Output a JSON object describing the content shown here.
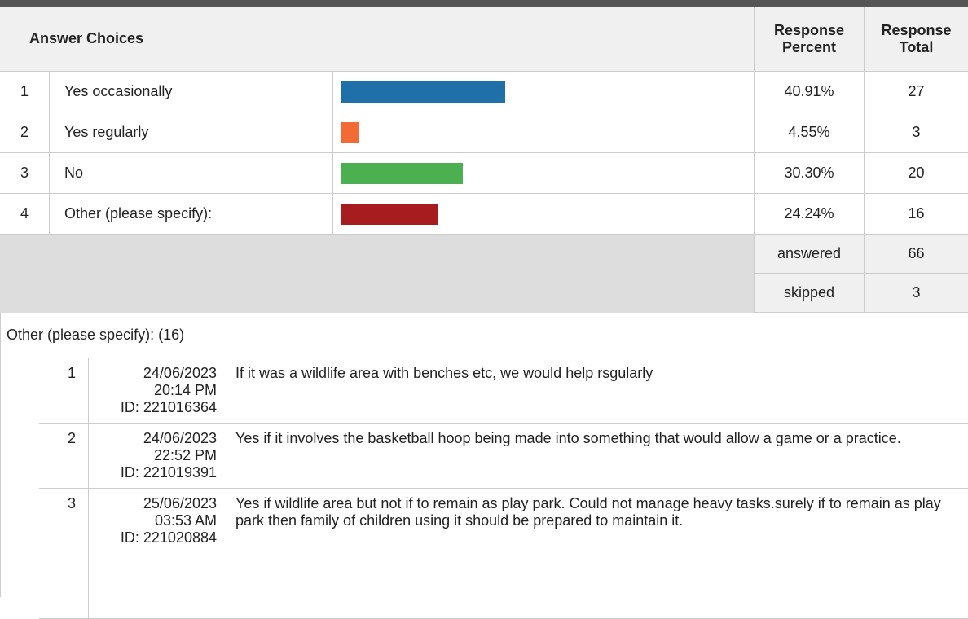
{
  "header": {
    "answer_choices": "Answer Choices",
    "response_percent": "Response Percent",
    "response_total": "Response Total"
  },
  "rows": [
    {
      "number": 1,
      "label": "Yes occasionally",
      "percent": {
        "value": 40.91,
        "label": "40.91%"
      },
      "total": 27,
      "color": "#1f6fa8"
    },
    {
      "number": 2,
      "label": "Yes regularly",
      "percent": {
        "value": 4.55,
        "label": "4.55%"
      },
      "total": 3,
      "color": "#f26b35"
    },
    {
      "number": 3,
      "label": "No",
      "percent": {
        "value": 30.3,
        "label": "30.30%"
      },
      "total": 20,
      "color": "#4caf50"
    },
    {
      "number": 4,
      "label": "Other (please specify):",
      "percent": {
        "value": 24.24,
        "label": "24.24%"
      },
      "total": 16,
      "color": "#a61c1f"
    }
  ],
  "summary": [
    {
      "label": "answered",
      "value": 66
    },
    {
      "label": "skipped",
      "value": 3
    }
  ],
  "other": {
    "title": "Other (please specify): (16)",
    "responses": [
      {
        "number": 1,
        "date": "24/06/2023",
        "time": "20:14 PM",
        "id": "ID: 221016364",
        "text": "If it was a wildlife area with benches etc, we would help rsgularly"
      },
      {
        "number": 2,
        "date": "24/06/2023",
        "time": "22:52 PM",
        "id": "ID: 221019391",
        "text": "Yes if it involves the basketball hoop being made into something that would allow a game or a practice."
      },
      {
        "number": 3,
        "date": "25/06/2023",
        "time": "03:53 AM",
        "id": "ID: 221020884",
        "text": "Yes if wildlife area but not if to remain as play park. Could not manage heavy tasks.surely if to remain as play park then family of children using it should be prepared to maintain it."
      }
    ]
  }
}
